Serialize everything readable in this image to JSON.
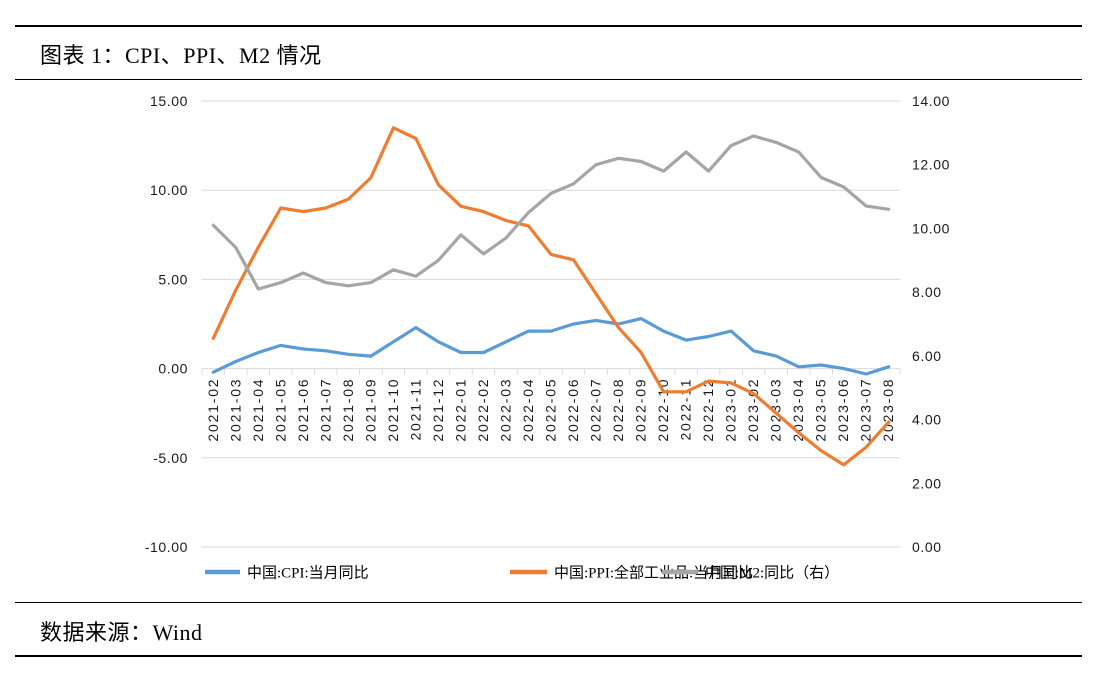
{
  "header": {
    "title": "图表 1：CPI、PPI、M2 情况"
  },
  "footer": {
    "source_label": "数据来源：Wind"
  },
  "chart_data": {
    "type": "line",
    "title": "",
    "xlabel": "",
    "ylabel_left": "",
    "ylabel_right": "",
    "grid": true,
    "legend_position": "bottom",
    "categories": [
      "2021-02",
      "2021-03",
      "2021-04",
      "2021-05",
      "2021-06",
      "2021-07",
      "2021-08",
      "2021-09",
      "2021-10",
      "2021-11",
      "2021-12",
      "2022-01",
      "2022-02",
      "2022-03",
      "2022-04",
      "2022-05",
      "2022-06",
      "2022-07",
      "2022-08",
      "2022-09",
      "2022-10",
      "2022-11",
      "2022-12",
      "2023-01",
      "2023-02",
      "2023-03",
      "2023-04",
      "2023-05",
      "2023-06",
      "2023-07",
      "2023-08"
    ],
    "series": [
      {
        "key": "cpi",
        "name": "中国:CPI:当月同比",
        "axis": "left",
        "color": "#5B9BD5",
        "values": [
          -0.2,
          0.4,
          0.9,
          1.3,
          1.1,
          1.0,
          0.8,
          0.7,
          1.5,
          2.3,
          1.5,
          0.9,
          0.9,
          1.5,
          2.1,
          2.1,
          2.5,
          2.7,
          2.5,
          2.8,
          2.1,
          1.6,
          1.8,
          2.1,
          1.0,
          0.7,
          0.1,
          0.2,
          0.0,
          -0.3,
          0.1
        ]
      },
      {
        "key": "ppi",
        "name": "中国:PPI:全部工业品:当月同比",
        "axis": "left",
        "color": "#ED7D31",
        "values": [
          1.7,
          4.4,
          6.8,
          9.0,
          8.8,
          9.0,
          9.5,
          10.7,
          13.5,
          12.9,
          10.3,
          9.1,
          8.8,
          8.3,
          8.0,
          6.4,
          6.1,
          4.2,
          2.3,
          0.9,
          -1.3,
          -1.3,
          -0.7,
          -0.8,
          -1.4,
          -2.5,
          -3.6,
          -4.6,
          -5.4,
          -4.4,
          -3.0
        ]
      },
      {
        "key": "m2",
        "name": "中国:M2:同比（右）",
        "axis": "right",
        "color": "#A5A5A5",
        "values": [
          10.1,
          9.4,
          8.1,
          8.3,
          8.6,
          8.3,
          8.2,
          8.3,
          8.7,
          8.5,
          9.0,
          9.8,
          9.2,
          9.7,
          10.5,
          11.1,
          11.4,
          12.0,
          12.2,
          12.1,
          11.8,
          12.4,
          11.8,
          12.6,
          12.9,
          12.7,
          12.4,
          11.6,
          11.3,
          10.7,
          10.6
        ]
      }
    ],
    "left_axis": {
      "min": -10,
      "max": 15,
      "step": 5,
      "tick_values": [
        15,
        10,
        5,
        0,
        -5,
        -10
      ],
      "ticks": [
        "15.00",
        "10.00",
        "5.00",
        "0.00",
        "-5.00",
        "-10.00"
      ]
    },
    "right_axis": {
      "min": 0,
      "max": 14,
      "step": 2,
      "tick_values": [
        14,
        12,
        10,
        8,
        6,
        4,
        2,
        0
      ],
      "ticks": [
        "14.00",
        "12.00",
        "10.00",
        "8.00",
        "6.00",
        "4.00",
        "2.00",
        "0.00"
      ]
    },
    "gridline_color": "#D9D9D9"
  }
}
